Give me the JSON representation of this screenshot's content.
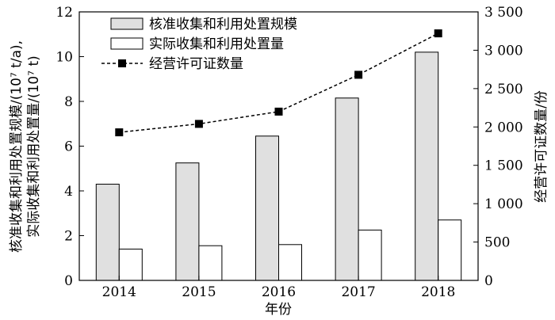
{
  "chart_data": {
    "type": "bar",
    "categories": [
      "2014",
      "2015",
      "2016",
      "2017",
      "2018"
    ],
    "xlabel": "年份",
    "ylabel_lines": [
      "核准收集和利用处置规模/(10⁷ t/a),",
      "实际收集和利用处置量/(10⁷ t)"
    ],
    "ylabel_right": "经营许可证数量/份",
    "ylim": [
      0,
      12
    ],
    "y_ticks": [
      "0",
      "2",
      "4",
      "6",
      "8",
      "10",
      "12"
    ],
    "ylim_right": [
      0,
      3500
    ],
    "y_right_ticks": [
      "0",
      "500",
      "1 000",
      "1 500",
      "2 000",
      "2 500",
      "3 000",
      "3 500"
    ],
    "series": [
      {
        "name": "核准收集和利用处置规模",
        "type": "bar",
        "axis": "left",
        "color": "#e0e0e0",
        "values": [
          4.3,
          5.25,
          6.45,
          8.15,
          10.2
        ]
      },
      {
        "name": "实际收集和利用处置量",
        "type": "bar",
        "axis": "left",
        "color": "#ffffff",
        "values": [
          1.4,
          1.55,
          1.6,
          2.25,
          2.7
        ]
      },
      {
        "name": "经营许可证数量",
        "type": "line",
        "axis": "right",
        "color": "#000000",
        "values": [
          1930,
          2040,
          2200,
          2680,
          3220
        ]
      }
    ],
    "legend_position": "top-left",
    "grid": false
  }
}
